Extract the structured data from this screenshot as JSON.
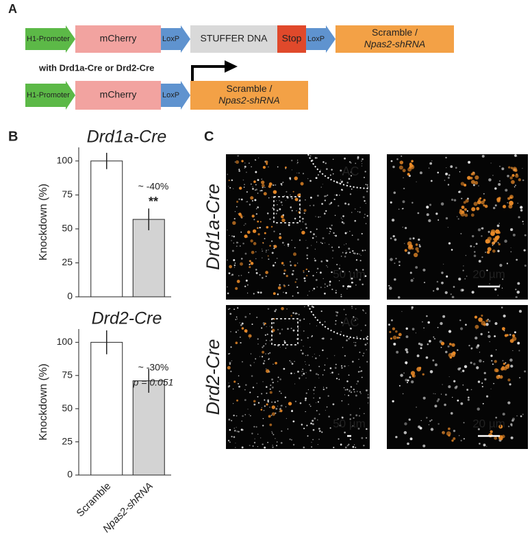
{
  "panel_labels": [
    "A",
    "B",
    "C"
  ],
  "panel_a": {
    "row1": [
      "H1-Promoter",
      "mCherry",
      "LoxP",
      "STUFFER DNA",
      "Stop",
      "LoxP",
      [
        "Scramble /",
        "Npas2-shRNA"
      ]
    ],
    "condition": "with Drd1a-Cre or Drd2-Cre",
    "row2": [
      "H1-Promoter",
      "mCherry",
      "LoxP",
      [
        "Scramble /",
        "Npas2-shRNA"
      ]
    ]
  },
  "chart_data": [
    {
      "type": "bar",
      "title": "Drd1a-Cre",
      "y_label": "Knockdown (%)",
      "values": [
        100,
        57
      ],
      "errors": [
        6,
        8
      ],
      "colors": [
        "#ffffff",
        "#d3d3d3"
      ],
      "ylim": [
        0,
        110
      ],
      "yticks": [
        0,
        25,
        50,
        75,
        100
      ],
      "annotations": [
        "~ -40%",
        "**"
      ]
    },
    {
      "type": "bar",
      "title": "Drd2-Cre",
      "y_label": "Knockdown (%)",
      "categories": [
        "Scramble",
        "Npas2-shRNA"
      ],
      "values": [
        100,
        71
      ],
      "errors": [
        9,
        9
      ],
      "colors": [
        "#ffffff",
        "#d3d3d3"
      ],
      "ylim": [
        0,
        110
      ],
      "yticks": [
        0,
        25,
        50,
        75,
        100
      ],
      "annotations": [
        "~ -30%",
        "p = 0.051"
      ]
    }
  ],
  "panel_c": {
    "row_labels": [
      "Drd1a-Cre",
      "Drd2-Cre"
    ],
    "region_labels": [
      "AC",
      "AC"
    ],
    "scale_bars": [
      "50 µm",
      "20 µm",
      "50 µm",
      "20 µm"
    ]
  }
}
